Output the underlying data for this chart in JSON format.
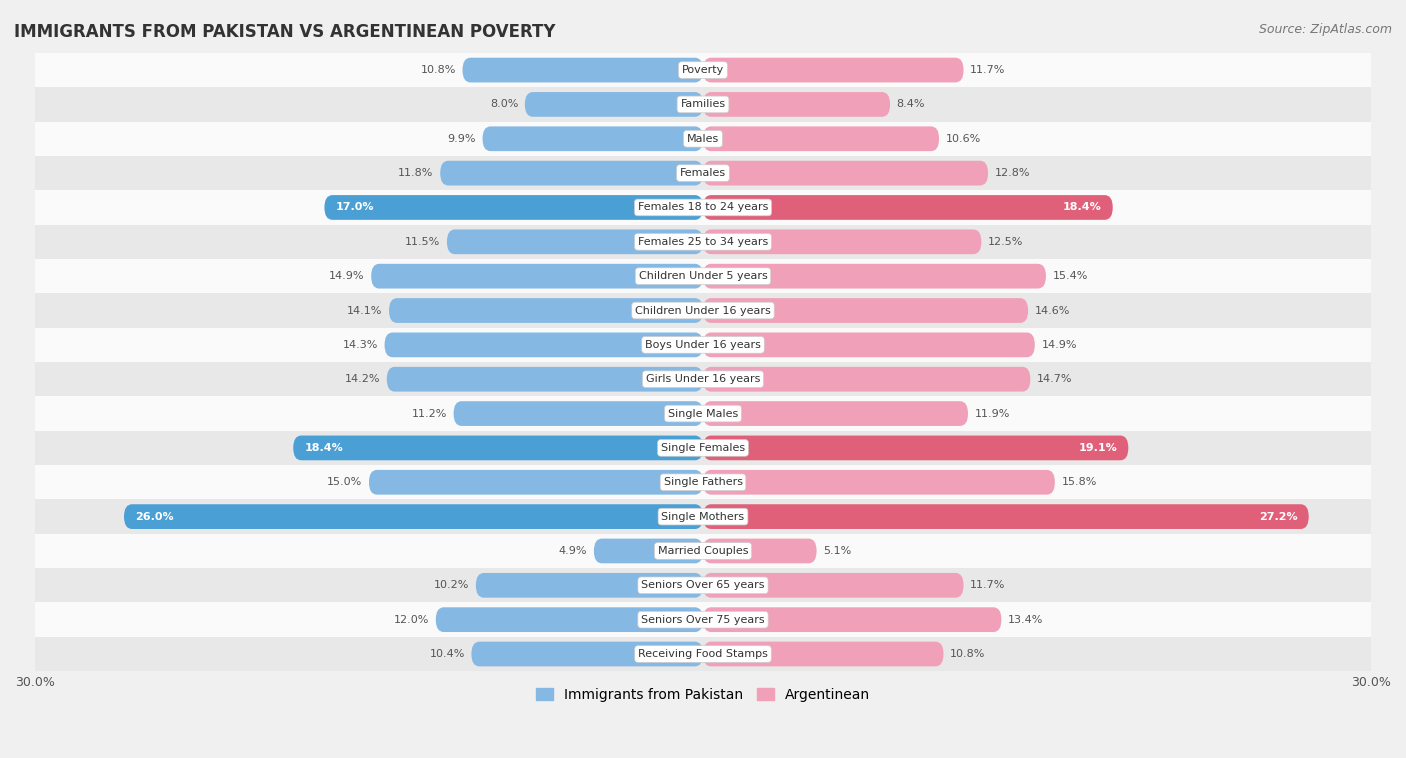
{
  "title": "IMMIGRANTS FROM PAKISTAN VS ARGENTINEAN POVERTY",
  "source": "Source: ZipAtlas.com",
  "categories": [
    "Poverty",
    "Families",
    "Males",
    "Females",
    "Females 18 to 24 years",
    "Females 25 to 34 years",
    "Children Under 5 years",
    "Children Under 16 years",
    "Boys Under 16 years",
    "Girls Under 16 years",
    "Single Males",
    "Single Females",
    "Single Fathers",
    "Single Mothers",
    "Married Couples",
    "Seniors Over 65 years",
    "Seniors Over 75 years",
    "Receiving Food Stamps"
  ],
  "pakistan_values": [
    10.8,
    8.0,
    9.9,
    11.8,
    17.0,
    11.5,
    14.9,
    14.1,
    14.3,
    14.2,
    11.2,
    18.4,
    15.0,
    26.0,
    4.9,
    10.2,
    12.0,
    10.4
  ],
  "argentina_values": [
    11.7,
    8.4,
    10.6,
    12.8,
    18.4,
    12.5,
    15.4,
    14.6,
    14.9,
    14.7,
    11.9,
    19.1,
    15.8,
    27.2,
    5.1,
    11.7,
    13.4,
    10.8
  ],
  "pakistan_color": "#85b8e3",
  "argentina_color": "#f0a0b8",
  "pakistan_highlight_color": "#4a9fd4",
  "argentina_highlight_color": "#e0607a",
  "highlight_rows": [
    4,
    11,
    13
  ],
  "axis_max": 30.0,
  "background_color": "#f0f0f0",
  "row_bg_light": "#fafafa",
  "row_bg_dark": "#e8e8e8",
  "legend_pakistan": "Immigrants from Pakistan",
  "legend_argentina": "Argentinean"
}
